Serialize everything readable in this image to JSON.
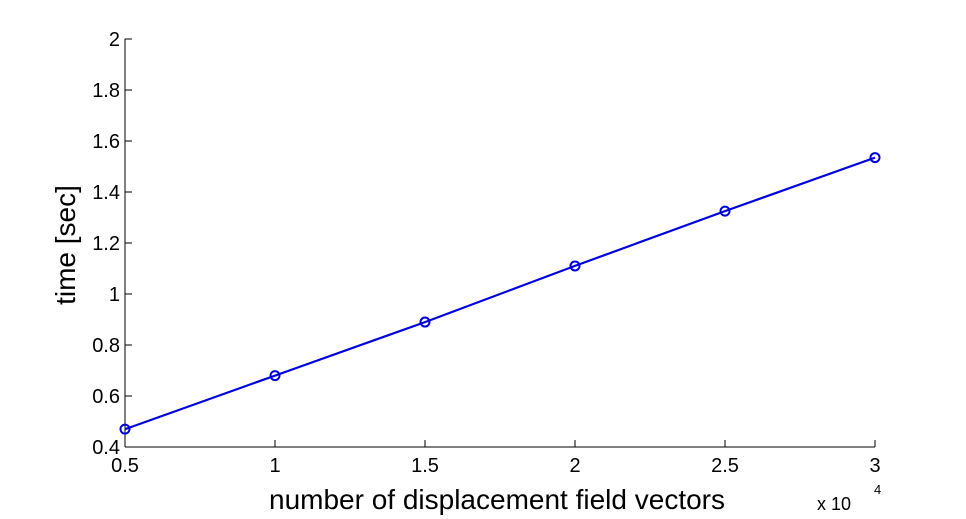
{
  "chart_data": {
    "type": "line",
    "title": "",
    "xlabel": "number of displacement field vectors",
    "ylabel": "time [sec]",
    "x_multiplier": {
      "base": "x 10",
      "exponent": "4"
    },
    "x": [
      0.5,
      1,
      1.5,
      2,
      2.5,
      3
    ],
    "xlim": [
      0.5,
      3
    ],
    "ylim": [
      0.4,
      2
    ],
    "xticks": [
      "0.5",
      "1",
      "1.5",
      "2",
      "2.5",
      "3"
    ],
    "yticks": [
      "0.4",
      "0.6",
      "0.8",
      "1",
      "1.2",
      "1.4",
      "1.6",
      "1.8",
      "2"
    ],
    "grid": false,
    "series": [
      {
        "color": "#0000dd",
        "marker": "circle",
        "values": [
          0.47,
          0.68,
          0.89,
          1.11,
          1.325,
          1.535
        ]
      }
    ]
  }
}
